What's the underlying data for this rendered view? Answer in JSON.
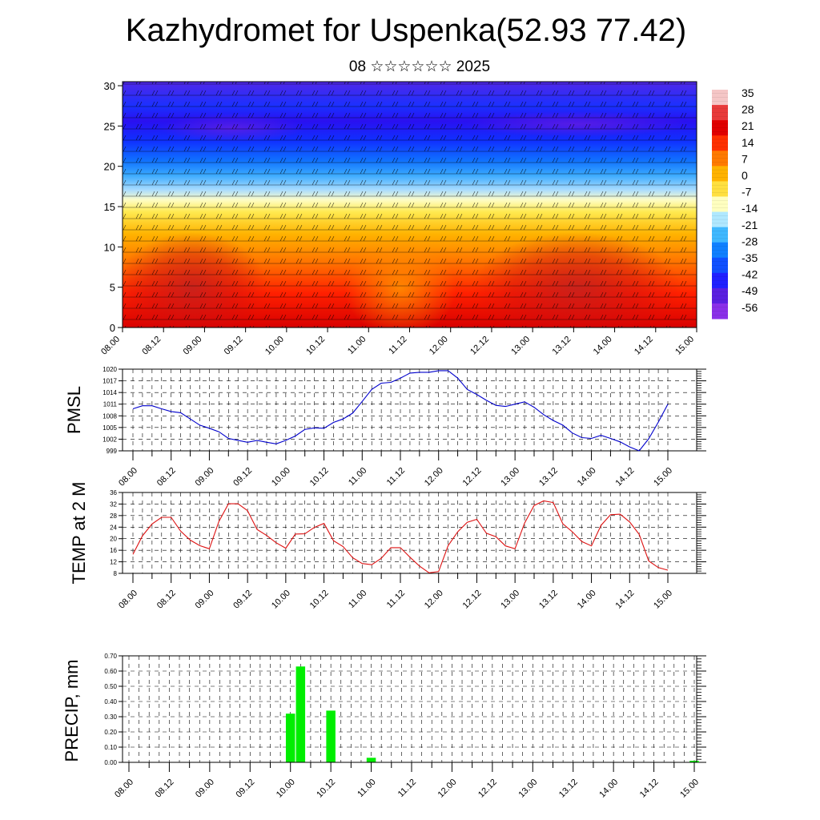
{
  "title": "Kazhydromet for Uspenka(52.93 77.42)",
  "subtitle": "08 ☆☆☆☆☆☆ 2025",
  "colors": {
    "pmsl_line": "#0000cc",
    "temp_line": "#dd1111",
    "precip_bar": "#00ee00",
    "palette": [
      "#f5c6c6",
      "#e83a3a",
      "#e00000",
      "#ff3000",
      "#ff7a00",
      "#ffb300",
      "#ffe040",
      "#ffffc0",
      "#b0e8ff",
      "#40b8ff",
      "#1080ff",
      "#1050ff",
      "#2020ff",
      "#5a20e0",
      "#8a30e8"
    ]
  },
  "chart_data": [
    {
      "type": "heatmap",
      "title": "",
      "xlabel": "",
      "ylabel": "",
      "x_tick_labels": [
        "08.00",
        "08.12",
        "09.00",
        "09.12",
        "10.00",
        "10.12",
        "11.00",
        "11.12",
        "12.00",
        "12.12",
        "13.00",
        "13.12",
        "14.00",
        "14.12",
        "15.00"
      ],
      "y_ticks": [
        0,
        5,
        10,
        15,
        20,
        25,
        30
      ],
      "ylim": [
        0,
        30.5
      ],
      "colorbar_labels": [
        "35",
        "28",
        "21",
        "14",
        "7",
        "0",
        "-7",
        "-14",
        "-21",
        "-28",
        "-35",
        "-42",
        "-49",
        "-56"
      ],
      "colorbar_values": [
        35,
        28,
        21,
        14,
        7,
        0,
        -7,
        -14,
        -21,
        -28,
        -35,
        -42,
        -49,
        -56
      ],
      "overlay": "wind barbs"
    },
    {
      "type": "line",
      "ylabel": "PMSL",
      "x_tick_labels": [
        "08.00",
        "08.12",
        "09.00",
        "09.12",
        "10.00",
        "10.12",
        "11.00",
        "11.12",
        "12.00",
        "12.12",
        "13.00",
        "13.12",
        "14.00",
        "14.12",
        "15.00"
      ],
      "y_ticks": [
        999,
        1002,
        1005,
        1008,
        1011,
        1014,
        1017,
        1020
      ],
      "ylim": [
        999,
        1020
      ],
      "series": [
        {
          "x": [
            0,
            3,
            6,
            9,
            12,
            15,
            18,
            21,
            24,
            27,
            30,
            33,
            36,
            39,
            42,
            45,
            48,
            51,
            54,
            57,
            60,
            63,
            66,
            69,
            72,
            75,
            78,
            81,
            84,
            87,
            90,
            93,
            96,
            99,
            102,
            105,
            108,
            111,
            114,
            117,
            120,
            123,
            126,
            129,
            132,
            135,
            138,
            141,
            144,
            147,
            150,
            153,
            156,
            159,
            162,
            165,
            168
          ],
          "values": [
            1009.8,
            1010.6,
            1010.6,
            1009.8,
            1009.1,
            1008.8,
            1007.2,
            1005.6,
            1004.8,
            1003.9,
            1002.2,
            1001.7,
            1001.2,
            1001.7,
            1001.2,
            1000.8,
            1001.7,
            1002.8,
            1004.5,
            1004.9,
            1004.8,
            1006.3,
            1007.2,
            1008.7,
            1011.7,
            1014.8,
            1016.4,
            1016.6,
            1017.7,
            1019.0,
            1019.2,
            1019.2,
            1019.6,
            1019.6,
            1017.7,
            1014.8,
            1013.5,
            1012.0,
            1010.7,
            1010.4,
            1011.0,
            1011.6,
            1010.2,
            1008.3,
            1006.8,
            1005.6,
            1003.6,
            1002.4,
            1002.2,
            1003.0,
            1002.2,
            1001.3,
            1000.0,
            999.0,
            1002.1,
            1006.4,
            1011.0
          ]
        }
      ]
    },
    {
      "type": "line",
      "ylabel": "TEMP at 2 M",
      "x_tick_labels": [
        "08.00",
        "08.12",
        "09.00",
        "09.12",
        "10.00",
        "10.12",
        "11.00",
        "11.12",
        "12.00",
        "12.12",
        "13.00",
        "13.12",
        "14.00",
        "14.12",
        "15.00"
      ],
      "y_ticks": [
        8,
        12,
        16,
        20,
        24,
        28,
        32,
        36
      ],
      "ylim": [
        8,
        36
      ],
      "series": [
        {
          "x": [
            0,
            3,
            6,
            9,
            12,
            15,
            18,
            21,
            24,
            27,
            30,
            33,
            36,
            39,
            42,
            45,
            48,
            51,
            54,
            57,
            60,
            63,
            66,
            69,
            72,
            75,
            78,
            81,
            84,
            87,
            90,
            93,
            96,
            99,
            102,
            105,
            108,
            111,
            114,
            117,
            120,
            123,
            126,
            129,
            132,
            135,
            138,
            141,
            144,
            147,
            150,
            153,
            156,
            159,
            162,
            165,
            168
          ],
          "values": [
            14.6,
            21.0,
            25.1,
            27.4,
            27.4,
            22.6,
            19.5,
            17.6,
            16.5,
            26.0,
            32.1,
            32.1,
            29.7,
            23.2,
            21.1,
            18.6,
            16.7,
            21.6,
            21.7,
            23.9,
            25.3,
            19.3,
            17.3,
            13.4,
            11.4,
            11.0,
            13.2,
            16.9,
            16.9,
            13.6,
            10.5,
            8.2,
            8.6,
            17.6,
            22.4,
            25.7,
            26.7,
            21.9,
            20.7,
            17.5,
            16.5,
            25.4,
            31.5,
            33.1,
            32.5,
            25.2,
            22.4,
            19.0,
            17.5,
            24.6,
            28.3,
            28.5,
            25.8,
            21.5,
            12.3,
            10.0,
            9.1
          ]
        }
      ]
    },
    {
      "type": "bar",
      "ylabel": "PRECIP, mm",
      "x_tick_labels": [
        "08.00",
        "08.12",
        "09.00",
        "09.12",
        "10.00",
        "10.12",
        "11.00",
        "11.12",
        "12.00",
        "12.12",
        "13.00",
        "13.12",
        "14.00",
        "14.12",
        "15.00"
      ],
      "y_ticks": [
        "0.00",
        "0.10",
        "0.20",
        "0.30",
        "0.40",
        "0.50",
        "0.60",
        "0.70"
      ],
      "ylim": [
        0,
        0.7
      ],
      "bars": [
        {
          "x": 48,
          "value": 0.32
        },
        {
          "x": 51,
          "value": 0.63
        },
        {
          "x": 60,
          "value": 0.34
        },
        {
          "x": 72,
          "value": 0.03
        },
        {
          "x": 168,
          "value": 0.01
        }
      ]
    }
  ]
}
